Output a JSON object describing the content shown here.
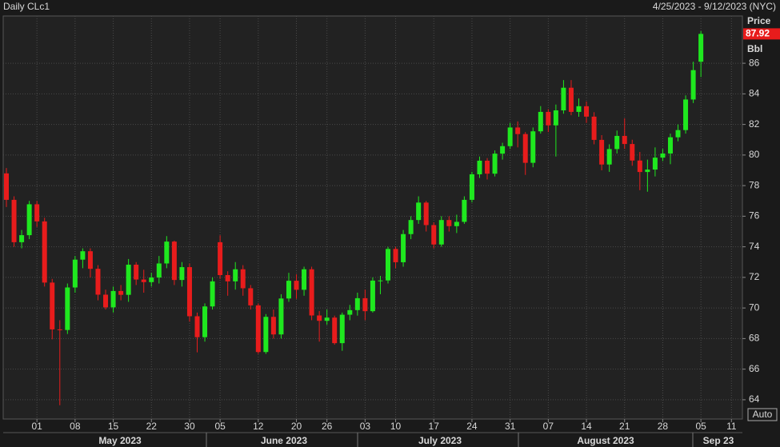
{
  "chart_data": {
    "type": "candlestick",
    "title": "Daily CLc1",
    "subtitle": "4/25/2023 - 9/12/2023 (NYC)",
    "y_axis_title": "Price",
    "y_axis_unit": "Bbl",
    "auto_button": "Auto",
    "months": [
      "May 2023",
      "June 2023",
      "July 2023",
      "August 2023",
      "Sep 23"
    ],
    "categories": [
      null,
      null,
      null,
      null,
      "01",
      null,
      null,
      null,
      null,
      "08",
      null,
      null,
      null,
      null,
      "15",
      null,
      null,
      null,
      null,
      "22",
      null,
      null,
      null,
      null,
      "30",
      null,
      null,
      null,
      "05",
      null,
      null,
      null,
      null,
      "12",
      null,
      null,
      null,
      null,
      "20",
      null,
      null,
      null,
      "26",
      null,
      null,
      null,
      null,
      "03",
      null,
      null,
      null,
      "10",
      null,
      null,
      null,
      null,
      "17",
      null,
      null,
      null,
      null,
      "24",
      null,
      null,
      null,
      null,
      "31",
      null,
      null,
      null,
      null,
      "07",
      null,
      null,
      null,
      null,
      "14",
      null,
      null,
      null,
      null,
      "21",
      null,
      null,
      null,
      null,
      "28",
      null,
      null,
      null,
      null,
      "05",
      null,
      null,
      null,
      "11"
    ],
    "open": [
      78.8,
      77.07,
      74.3,
      74.76,
      76.78,
      75.66,
      71.66,
      68.6,
      68.56,
      71.34,
      73.16,
      73.71,
      72.56,
      70.87,
      70.04,
      71.11,
      70.86,
      72.83,
      71.86,
      71.69,
      71.99,
      72.91,
      74.34,
      71.83,
      72.67,
      69.46,
      68.09,
      70.1,
      74.3,
      72.15,
      71.74,
      72.53,
      71.29,
      70.17,
      67.12,
      69.42,
      68.27,
      70.62,
      71.78,
      71.19,
      72.53,
      69.51,
      69.16,
      69.37,
      67.7,
      69.56,
      69.86,
      70.64,
      69.79,
      71.79,
      71.8,
      73.86,
      72.99,
      74.83,
      75.75,
      76.89,
      75.42,
      74.15,
      75.75,
      75.35,
      75.63,
      77.07,
      78.74,
      79.63,
      78.78,
      80.09,
      80.58,
      81.8,
      81.37,
      79.49,
      81.55,
      82.82,
      81.94,
      82.92,
      84.4,
      82.82,
      83.19,
      82.51,
      80.99,
      79.38,
      80.39,
      81.25,
      80.72,
      79.64,
      78.89,
      79.05,
      79.83,
      80.1,
      81.16,
      81.63,
      83.63,
      86.1,
      null,
      null,
      null,
      null
    ],
    "high": [
      79.15,
      77.3,
      75.1,
      77.0,
      77.0,
      75.9,
      71.9,
      69.2,
      71.6,
      73.4,
      73.9,
      73.9,
      72.8,
      71.2,
      71.4,
      71.5,
      73.2,
      73.0,
      72.5,
      72.3,
      73.4,
      74.7,
      74.4,
      73.0,
      72.9,
      69.7,
      70.3,
      72.0,
      74.75,
      72.4,
      73.0,
      72.8,
      71.5,
      70.3,
      69.6,
      69.9,
      70.9,
      72.3,
      72.2,
      72.7,
      72.7,
      69.8,
      69.9,
      69.5,
      69.7,
      70.2,
      71.0,
      71.2,
      72.0,
      72.1,
      74.0,
      74.0,
      75.1,
      76.0,
      77.3,
      77.0,
      75.6,
      76.0,
      76.0,
      76.1,
      77.3,
      78.9,
      79.9,
      79.8,
      80.3,
      80.8,
      82.1,
      82.2,
      81.5,
      81.8,
      83.2,
      83.0,
      83.3,
      84.9,
      84.9,
      83.7,
      83.5,
      82.8,
      81.3,
      80.7,
      81.6,
      82.4,
      81.0,
      80.2,
      79.7,
      80.5,
      80.4,
      81.4,
      82.0,
      83.9,
      86.1,
      88.1,
      null,
      null,
      null,
      null
    ],
    "low": [
      76.6,
      74.0,
      73.9,
      74.5,
      75.3,
      71.4,
      67.95,
      63.64,
      68.3,
      71.0,
      72.6,
      72.0,
      70.5,
      69.9,
      69.7,
      70.5,
      70.4,
      71.5,
      71.0,
      71.4,
      71.6,
      72.6,
      71.5,
      71.4,
      69.1,
      67.1,
      67.8,
      69.9,
      71.9,
      70.8,
      71.2,
      70.8,
      69.9,
      67.0,
      67.0,
      68.0,
      68.0,
      70.4,
      70.6,
      70.8,
      69.2,
      67.8,
      68.9,
      67.6,
      67.2,
      69.2,
      69.5,
      69.2,
      69.7,
      70.9,
      71.6,
      72.6,
      72.7,
      74.5,
      75.5,
      75.0,
      73.9,
      74.0,
      75.0,
      74.9,
      75.5,
      76.9,
      78.5,
      78.4,
      78.6,
      79.7,
      80.4,
      80.5,
      78.7,
      79.2,
      81.4,
      81.5,
      79.9,
      82.7,
      82.6,
      82.5,
      82.1,
      80.7,
      79.0,
      78.9,
      80.1,
      80.4,
      79.3,
      77.7,
      77.6,
      78.6,
      79.6,
      79.4,
      80.9,
      81.4,
      83.4,
      85.1,
      null,
      null,
      null,
      null
    ],
    "close": [
      77.07,
      74.3,
      74.76,
      76.78,
      75.66,
      71.66,
      68.6,
      68.56,
      71.34,
      73.16,
      73.71,
      72.56,
      70.87,
      70.04,
      71.11,
      70.86,
      72.83,
      71.86,
      71.69,
      71.99,
      72.91,
      74.34,
      71.83,
      72.67,
      69.46,
      68.09,
      70.1,
      71.74,
      72.15,
      71.74,
      72.53,
      71.29,
      70.17,
      67.12,
      69.42,
      68.27,
      70.62,
      71.78,
      71.19,
      72.53,
      69.51,
      69.16,
      69.37,
      67.7,
      69.56,
      69.86,
      70.64,
      69.79,
      71.79,
      71.8,
      73.86,
      72.99,
      74.83,
      75.75,
      76.89,
      75.42,
      74.15,
      75.75,
      75.35,
      75.63,
      77.07,
      78.74,
      79.63,
      78.78,
      80.09,
      80.58,
      81.8,
      81.37,
      79.49,
      81.55,
      82.82,
      81.94,
      82.92,
      84.4,
      82.82,
      83.19,
      82.51,
      80.99,
      79.38,
      80.39,
      81.25,
      80.72,
      79.64,
      78.89,
      79.05,
      79.83,
      80.1,
      81.16,
      81.63,
      83.63,
      85.55,
      87.92,
      null,
      null,
      null,
      null
    ],
    "up_color": "#1fe81f",
    "down_color": "#e81c1c",
    "ylim": [
      62.74,
      89.09
    ],
    "yticks": [
      64,
      66,
      68,
      70,
      72,
      74,
      76,
      78,
      80,
      82,
      84,
      86
    ],
    "grid": true
  }
}
